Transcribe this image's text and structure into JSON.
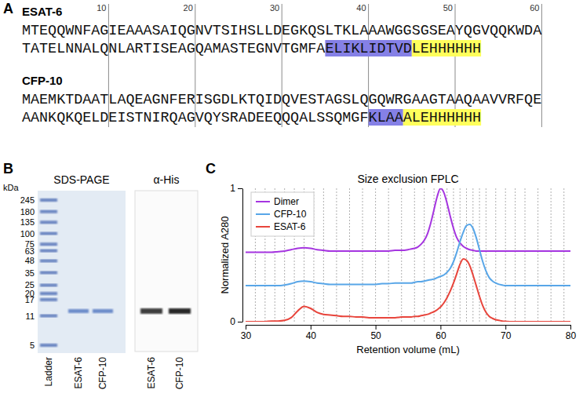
{
  "panel_a": {
    "label": "A",
    "ruler": [
      10,
      20,
      30,
      40,
      50,
      60
    ],
    "proteins": [
      {
        "name": "ESAT-6",
        "lines": [
          [
            {
              "text": "MTEQQWNFAGIEAAASAIQGNVTSIHSLLDEGKQSLTKLAAAWGGSGSEAYQGVQQKWDA"
            }
          ],
          [
            {
              "text": "TATELNNALQNLARTISEAGQAMASTEGNVTGMFA"
            },
            {
              "text": "ELIKLIDTVD",
              "color": "#8580e6"
            },
            {
              "text": "LEHHHHHH",
              "color": "#ffff5c"
            }
          ]
        ]
      },
      {
        "name": "CFP-10",
        "lines": [
          [
            {
              "text": "MAEMKTDAATLAQEAGNFERISGDLKTQIDQVESTAGSLQGQWRGAAGTAAQAAVVRFQE"
            }
          ],
          [
            {
              "text": "AANKQKQELDEISTNIRQAGVQYSRADEEQQQALSSQMGF"
            },
            {
              "text": "KLAA",
              "color": "#8580e6"
            },
            {
              "text": "ALEHHHHHH",
              "color": "#ffff5c"
            }
          ]
        ]
      }
    ]
  },
  "panel_b": {
    "label": "B",
    "gel": {
      "title": "SDS-PAGE",
      "unit": "kDa",
      "markers": [
        245,
        180,
        135,
        100,
        75,
        63,
        48,
        35,
        25,
        20,
        17,
        11,
        5
      ],
      "lanes": [
        {
          "name": "Ladder"
        },
        {
          "name": "ESAT-6",
          "band_kda": 12.5
        },
        {
          "name": "CFP-10",
          "band_kda": 12.5
        }
      ]
    },
    "blot": {
      "title": "α-His",
      "lanes": [
        {
          "name": "ESAT-6",
          "band_kda": 12.5
        },
        {
          "name": "CFP-10",
          "band_kda": 12.5
        }
      ]
    }
  },
  "chart_data": {
    "type": "line",
    "label": "C",
    "title": "Size exclusion FPLC",
    "x_label": "Retention volume (mL)",
    "y_label": "Normalized A280",
    "xlim": [
      30,
      80
    ],
    "ylim": [
      0,
      1
    ],
    "xticks": [
      30,
      40,
      50,
      60,
      70,
      80
    ],
    "yticks": [
      0,
      1
    ],
    "legend": "upper left",
    "fractions": [
      31.5,
      33,
      34.5,
      36,
      37.5,
      39,
      40.5,
      42,
      44,
      46,
      48,
      50,
      52,
      54,
      56,
      57.5,
      59,
      60,
      61,
      62,
      63,
      64,
      65,
      66,
      67,
      68.5,
      70,
      71.5,
      73,
      75,
      77,
      79
    ],
    "x": [
      30,
      31,
      32,
      33,
      34,
      35,
      36,
      37,
      38,
      39,
      40,
      41,
      42,
      43,
      44,
      45,
      46,
      47,
      48,
      49,
      50,
      51,
      52,
      53,
      54,
      55,
      55.5,
      56,
      56.5,
      57,
      57.5,
      58,
      58.5,
      59,
      59.5,
      60,
      60.5,
      61,
      61.5,
      62,
      62.5,
      63,
      63.5,
      64,
      64.5,
      65,
      65.5,
      66,
      66.5,
      67,
      67.5,
      68,
      68.5,
      69,
      69.5,
      70,
      71,
      72,
      73,
      74,
      75,
      76,
      77,
      78,
      79,
      80
    ],
    "series": [
      {
        "name": "Dimer",
        "color": "#a535e0",
        "values": [
          0.52,
          0.52,
          0.52,
          0.52,
          0.52,
          0.525,
          0.53,
          0.54,
          0.55,
          0.555,
          0.55,
          0.54,
          0.535,
          0.53,
          0.53,
          0.53,
          0.53,
          0.53,
          0.53,
          0.53,
          0.53,
          0.53,
          0.53,
          0.535,
          0.535,
          0.54,
          0.545,
          0.55,
          0.56,
          0.58,
          0.61,
          0.66,
          0.74,
          0.84,
          0.94,
          1.0,
          0.97,
          0.89,
          0.79,
          0.7,
          0.63,
          0.59,
          0.565,
          0.55,
          0.54,
          0.535,
          0.53,
          0.53,
          0.53,
          0.53,
          0.53,
          0.53,
          0.53,
          0.53,
          0.53,
          0.53,
          0.53,
          0.53,
          0.53,
          0.53,
          0.53,
          0.53,
          0.53,
          0.53,
          0.53,
          0.53
        ]
      },
      {
        "name": "CFP-10",
        "color": "#58a6e8",
        "values": [
          0.27,
          0.27,
          0.27,
          0.27,
          0.27,
          0.27,
          0.275,
          0.285,
          0.3,
          0.305,
          0.3,
          0.29,
          0.285,
          0.28,
          0.28,
          0.28,
          0.28,
          0.28,
          0.28,
          0.28,
          0.28,
          0.285,
          0.285,
          0.29,
          0.29,
          0.29,
          0.29,
          0.295,
          0.3,
          0.3,
          0.305,
          0.31,
          0.315,
          0.32,
          0.33,
          0.34,
          0.35,
          0.37,
          0.4,
          0.45,
          0.52,
          0.6,
          0.67,
          0.72,
          0.73,
          0.7,
          0.63,
          0.54,
          0.45,
          0.38,
          0.33,
          0.305,
          0.29,
          0.28,
          0.275,
          0.27,
          0.27,
          0.27,
          0.27,
          0.27,
          0.27,
          0.27,
          0.27,
          0.27,
          0.27,
          0.27
        ]
      },
      {
        "name": "ESAT-6",
        "color": "#e8453c",
        "values": [
          0,
          0,
          0,
          0,
          0.005,
          0.005,
          0.01,
          0.03,
          0.08,
          0.115,
          0.1,
          0.07,
          0.055,
          0.05,
          0.045,
          0.04,
          0.04,
          0.035,
          0.035,
          0.03,
          0.03,
          0.03,
          0.03,
          0.03,
          0.035,
          0.035,
          0.035,
          0.04,
          0.04,
          0.045,
          0.05,
          0.055,
          0.065,
          0.075,
          0.09,
          0.11,
          0.14,
          0.18,
          0.23,
          0.29,
          0.36,
          0.43,
          0.47,
          0.46,
          0.42,
          0.35,
          0.27,
          0.19,
          0.12,
          0.07,
          0.04,
          0.025,
          0.015,
          0.01,
          0.005,
          0.003,
          0,
          0,
          0,
          0,
          0,
          0,
          0,
          0,
          0,
          0
        ]
      }
    ]
  }
}
